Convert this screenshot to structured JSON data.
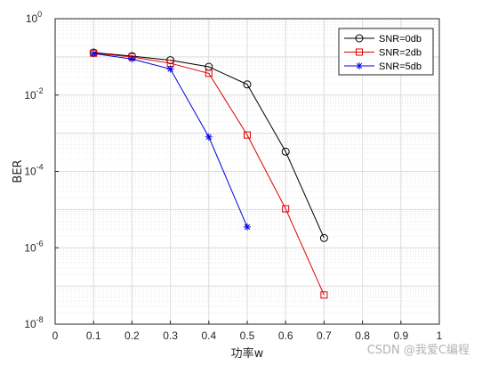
{
  "chart_data": {
    "type": "line",
    "xlabel": "功率w",
    "ylabel": "BER",
    "xlim": [
      0,
      1
    ],
    "ylim": [
      1e-08,
      1
    ],
    "yscale": "log",
    "grid": true,
    "minor_grid": true,
    "legend_position": "top-right",
    "x_ticks": [
      "0",
      "0.1",
      "0.2",
      "0.3",
      "0.4",
      "0.5",
      "0.6",
      "0.7",
      "0.8",
      "0.9",
      "1"
    ],
    "y_ticks": [
      {
        "base": "10",
        "exp": "0"
      },
      {
        "base": "10",
        "exp": "-2"
      },
      {
        "base": "10",
        "exp": "-4"
      },
      {
        "base": "10",
        "exp": "-6"
      },
      {
        "base": "10",
        "exp": "-8"
      }
    ],
    "series": [
      {
        "name": "SNR=0db",
        "color": "#000000",
        "marker": "circle",
        "x": [
          0.1,
          0.2,
          0.3,
          0.4,
          0.5,
          0.6,
          0.7
        ],
        "y": [
          0.13,
          0.105,
          0.082,
          0.055,
          0.019,
          0.00033,
          1.8e-06
        ]
      },
      {
        "name": "SNR=2db",
        "color": "#e00000",
        "marker": "square",
        "x": [
          0.1,
          0.2,
          0.3,
          0.4,
          0.5,
          0.6,
          0.7
        ],
        "y": [
          0.125,
          0.1,
          0.068,
          0.037,
          0.0009,
          1.05e-05,
          5.8e-08
        ]
      },
      {
        "name": "SNR=5db",
        "color": "#0000e0",
        "marker": "star",
        "x": [
          0.1,
          0.2,
          0.3,
          0.4,
          0.5
        ],
        "y": [
          0.122,
          0.088,
          0.048,
          0.0008,
          3.5e-06
        ]
      }
    ]
  },
  "watermark": "CSDN @我爱C编程"
}
